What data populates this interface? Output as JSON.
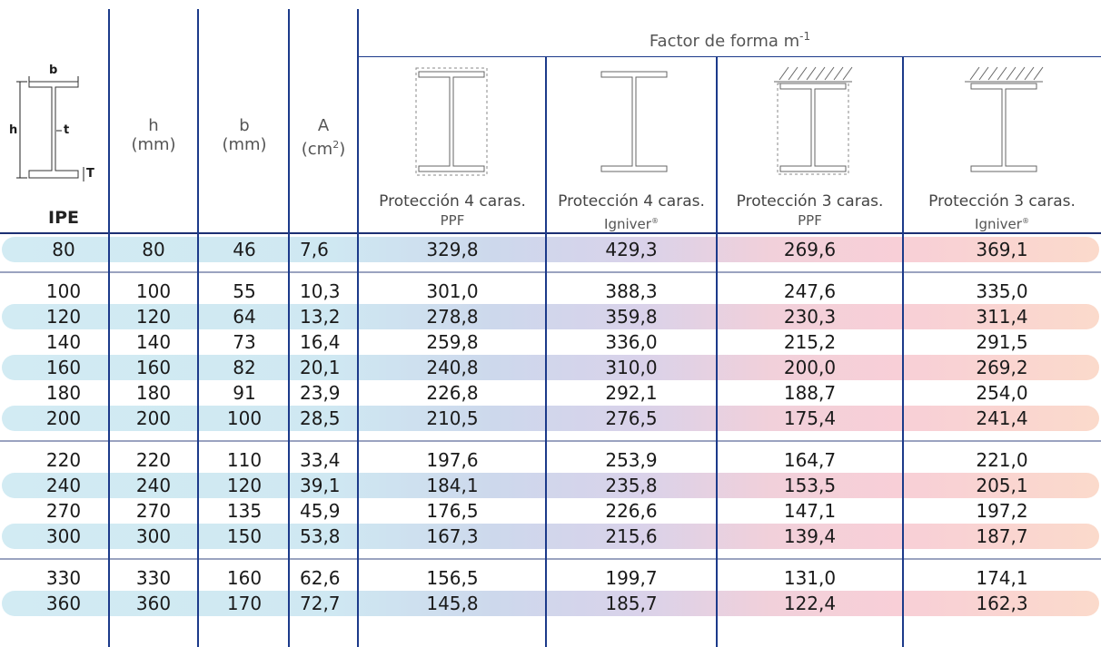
{
  "header": {
    "group_title": "Factor de forma m",
    "group_title_sup": "-1",
    "ipe_label": "IPE",
    "col_h": {
      "name": "h",
      "unit": "(mm)"
    },
    "col_b": {
      "name": "b",
      "unit": "(mm)"
    },
    "col_A": {
      "name": "A",
      "unit_open": "(cm",
      "unit_sup": "2",
      "unit_close": ")"
    },
    "diagram_labels": {
      "b": "b",
      "h": "h",
      "t": "t",
      "T": "T"
    },
    "protections": [
      {
        "line1": "Protección 4 caras.",
        "line2": "PPF"
      },
      {
        "line1": "Protección 4 caras.",
        "line2": "Igniver",
        "mark": "®"
      },
      {
        "line1": "Protección 3 caras.",
        "line2": "PPF"
      },
      {
        "line1": "Protección 3 caras.",
        "line2": "Igniver",
        "mark": "®"
      }
    ]
  },
  "rows": [
    [
      "80",
      "80",
      "46",
      "7,6",
      "329,8",
      "429,3",
      "269,6",
      "369,1"
    ],
    [
      "100",
      "100",
      "55",
      "10,3",
      "301,0",
      "388,3",
      "247,6",
      "335,0"
    ],
    [
      "120",
      "120",
      "64",
      "13,2",
      "278,8",
      "359,8",
      "230,3",
      "311,4"
    ],
    [
      "140",
      "140",
      "73",
      "16,4",
      "259,8",
      "336,0",
      "215,2",
      "291,5"
    ],
    [
      "160",
      "160",
      "82",
      "20,1",
      "240,8",
      "310,0",
      "200,0",
      "269,2"
    ],
    [
      "180",
      "180",
      "91",
      "23,9",
      "226,8",
      "292,1",
      "188,7",
      "254,0"
    ],
    [
      "200",
      "200",
      "100",
      "28,5",
      "210,5",
      "276,5",
      "175,4",
      "241,4"
    ],
    [
      "220",
      "220",
      "110",
      "33,4",
      "197,6",
      "253,9",
      "164,7",
      "221,0"
    ],
    [
      "240",
      "240",
      "120",
      "39,1",
      "184,1",
      "235,8",
      "153,5",
      "205,1"
    ],
    [
      "270",
      "270",
      "135",
      "45,9",
      "176,5",
      "226,6",
      "147,1",
      "197,2"
    ],
    [
      "300",
      "300",
      "150",
      "53,8",
      "167,3",
      "215,6",
      "139,4",
      "187,7"
    ],
    [
      "330",
      "330",
      "160",
      "62,6",
      "156,5",
      "199,7",
      "131,0",
      "174,1"
    ],
    [
      "360",
      "360",
      "170",
      "72,7",
      "145,8",
      "185,7",
      "122,4",
      "162,3"
    ]
  ],
  "colors": {
    "rule": "#1c3a8a",
    "band_start": "#d2ebf3",
    "band_mid": "#d9d2ea",
    "band_pink": "#f8cfd7",
    "band_end": "#fbdacb"
  }
}
